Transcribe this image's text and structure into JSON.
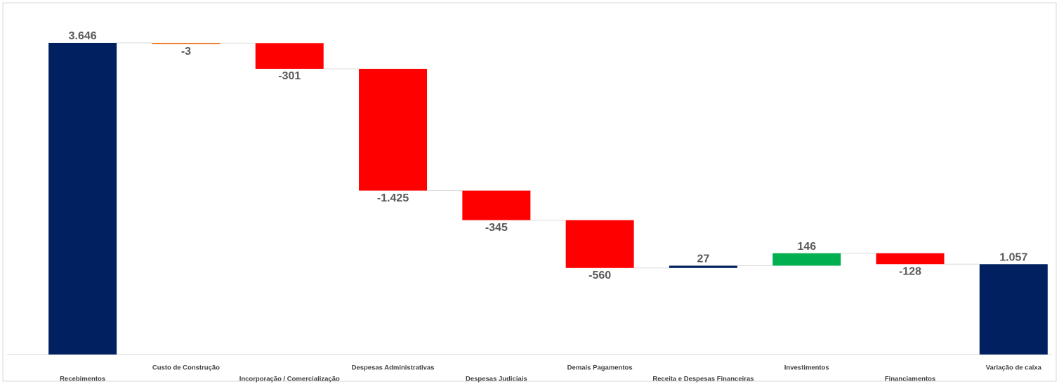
{
  "chart_data": {
    "type": "waterfall",
    "categories": [
      "Recebimentos",
      "Custo de Construção",
      "Incorporação / Comercialização",
      "Despesas Administrativas",
      "Despesas Judiciais",
      "Demais Pagamentos",
      "Receita e Despesas Financeiras",
      "Investimentos",
      "Financiamentos",
      "Variação de caixa"
    ],
    "values": [
      3646,
      -3,
      -301,
      -1425,
      -345,
      -560,
      27,
      146,
      -128,
      1057
    ],
    "value_labels": [
      "3.646",
      "-3",
      "-301",
      "-1.425",
      "-345",
      "-560",
      "27",
      "146",
      "-128",
      "1.057"
    ],
    "measure": [
      "absolute",
      "relative",
      "relative",
      "relative",
      "relative",
      "relative",
      "relative",
      "relative",
      "relative",
      "total"
    ],
    "colors": [
      "#002060",
      "#ed7d31",
      "#ff0000",
      "#ff0000",
      "#ff0000",
      "#ff0000",
      "#002060",
      "#00b050",
      "#ff0000",
      "#002060"
    ]
  }
}
